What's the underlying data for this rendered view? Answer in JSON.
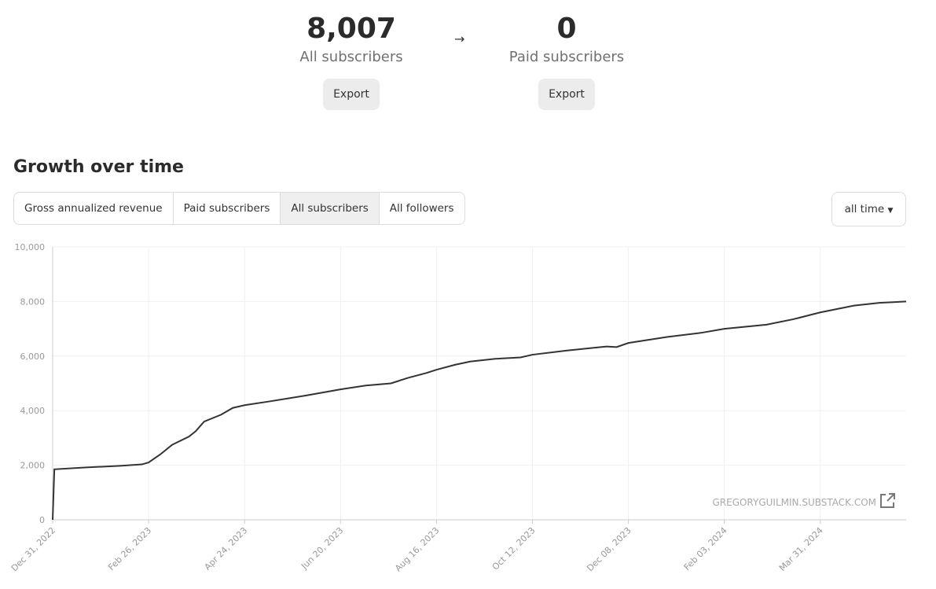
{
  "stats": [
    {
      "value": "8,007",
      "label": "All subscribers",
      "button": "Export"
    },
    {
      "value": "0",
      "label": "Paid subscribers",
      "button": "Export"
    }
  ],
  "section_title": "Growth over time",
  "tabs": [
    {
      "label": "Gross annualized revenue",
      "selected": false
    },
    {
      "label": "Paid subscribers",
      "selected": false
    },
    {
      "label": "All subscribers",
      "selected": true
    },
    {
      "label": "All followers",
      "selected": false
    }
  ],
  "range_selector": "all time",
  "chart_data": {
    "type": "line",
    "x": [
      "2022-12-31",
      "2023-01-01",
      "2023-01-20",
      "2023-02-10",
      "2023-02-22",
      "2023-02-26",
      "2023-03-05",
      "2023-03-12",
      "2023-03-22",
      "2023-03-26",
      "2023-03-31",
      "2023-04-10",
      "2023-04-17",
      "2023-04-24",
      "2023-05-10",
      "2023-05-30",
      "2023-06-20",
      "2023-07-05",
      "2023-07-20",
      "2023-07-30",
      "2023-08-10",
      "2023-08-16",
      "2023-08-27",
      "2023-09-05",
      "2023-09-20",
      "2023-10-05",
      "2023-10-12",
      "2023-11-01",
      "2023-11-25",
      "2023-12-01",
      "2023-12-08",
      "2023-12-31",
      "2024-01-20",
      "2024-02-03",
      "2024-02-28",
      "2024-03-15",
      "2024-03-31",
      "2024-04-20",
      "2024-05-05",
      "2024-05-21"
    ],
    "values": [
      0,
      1850,
      1920,
      1980,
      2030,
      2100,
      2400,
      2750,
      3050,
      3250,
      3600,
      3850,
      4100,
      4200,
      4350,
      4550,
      4780,
      4920,
      5000,
      5200,
      5380,
      5500,
      5680,
      5800,
      5900,
      5950,
      6050,
      6200,
      6350,
      6330,
      6480,
      6700,
      6850,
      7000,
      7150,
      7350,
      7600,
      7850,
      7950,
      8000
    ],
    "color": "#333333",
    "xlim": [
      "2022-12-31",
      "2024-05-21"
    ],
    "xticks": [
      {
        "value": "2022-12-31",
        "label": "Dec 31, 2022"
      },
      {
        "value": "2023-02-26",
        "label": "Feb 26, 2023"
      },
      {
        "value": "2023-04-24",
        "label": "Apr 24, 2023"
      },
      {
        "value": "2023-06-20",
        "label": "Jun 20, 2023"
      },
      {
        "value": "2023-08-16",
        "label": "Aug 16, 2023"
      },
      {
        "value": "2023-10-12",
        "label": "Oct 12, 2023"
      },
      {
        "value": "2023-12-08",
        "label": "Dec 08, 2023"
      },
      {
        "value": "2024-02-03",
        "label": "Feb 03, 2024"
      },
      {
        "value": "2024-03-31",
        "label": "Mar 31, 2024"
      }
    ],
    "ylim": [
      0,
      10000
    ],
    "yticks": [
      0,
      {
        "value": 2000,
        "label": "2,000"
      },
      {
        "value": 4000,
        "label": "4,000"
      },
      {
        "value": 6000,
        "label": "6,000"
      },
      {
        "value": 8000,
        "label": "8,000"
      },
      {
        "value": 10000,
        "label": "10,000"
      }
    ],
    "grid": true,
    "watermark": "GREGORYGUILMIN.SUBSTACK.COM"
  }
}
